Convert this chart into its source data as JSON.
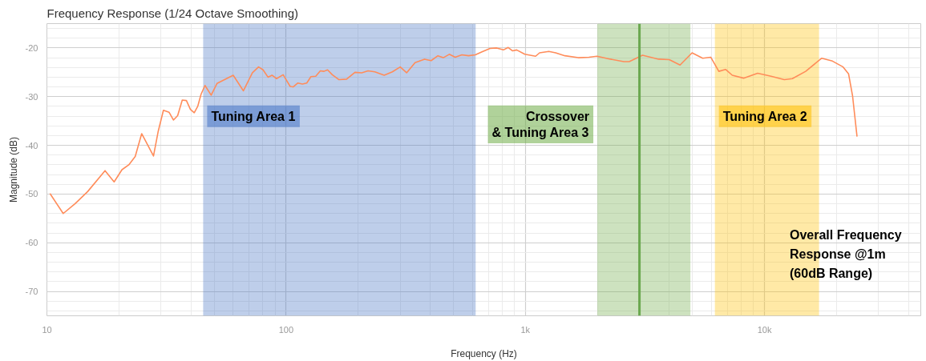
{
  "chart_data": {
    "type": "line",
    "title": "Frequency Response (1/24 Octave Smoothing)",
    "xlabel": "Frequency (Hz)",
    "ylabel": "Magnitude (dB)",
    "log": "x",
    "xlim": [
      10,
      45000
    ],
    "xticks": [
      10,
      100,
      {
        "value": 1000,
        "label": "1k"
      },
      {
        "value": 10000,
        "label": "10k"
      }
    ],
    "ylim": [
      -75,
      -15
    ],
    "yticks": [
      -70,
      -60,
      -50,
      -40,
      -30,
      -20
    ],
    "grid": true,
    "marker": "none",
    "line_style": "solid",
    "series": [
      {
        "color": "#ff8c5a",
        "x": [
          10.3,
          11.7,
          13.1,
          14.8,
          17.5,
          19.1,
          20.6,
          22.0,
          23.4,
          24.9,
          27.9,
          29.2,
          30.7,
          32.4,
          33.8,
          35.2,
          36.8,
          38.3,
          39.8,
          41.3,
          42.7,
          44.1,
          45.8,
          48.6,
          51.4,
          60.1,
          66.3,
          72.3,
          76.7,
          80.1,
          84.0,
          87.3,
          91.2,
          97.2,
          104,
          107,
          112,
          117,
          122,
          127,
          133,
          139,
          144,
          149,
          156,
          166,
          179,
          194,
          207,
          220,
          235,
          257,
          278,
          300,
          319,
          346,
          379,
          404,
          431,
          454,
          481,
          509,
          543,
          579,
          618,
          659,
          712,
          759,
          810,
          848,
          885,
          920,
          995,
          1104,
          1147,
          1254,
          1339,
          1464,
          1665,
          1845,
          1994,
          2270,
          2582,
          2718,
          3090,
          3607,
          3999,
          4434,
          4978,
          5515,
          5958,
          6440,
          6870,
          7330,
          8170,
          9360,
          10650,
          12100,
          13070,
          14860,
          17340,
          19230,
          21300,
          22450,
          23330,
          24360
        ],
        "values": [
          -49.9,
          -54.0,
          -52.0,
          -49.5,
          -45.2,
          -47.5,
          -45.0,
          -44.0,
          -42.3,
          -37.6,
          -42.2,
          -37.1,
          -32.8,
          -33.2,
          -34.8,
          -33.9,
          -30.7,
          -30.8,
          -32.6,
          -33.3,
          -32.0,
          -29.5,
          -27.7,
          -29.7,
          -27.3,
          -25.6,
          -28.8,
          -25.1,
          -23.9,
          -24.5,
          -26.0,
          -25.6,
          -26.3,
          -25.5,
          -27.9,
          -28.0,
          -27.2,
          -27.4,
          -27.2,
          -25.9,
          -25.8,
          -24.7,
          -24.8,
          -24.5,
          -25.5,
          -26.5,
          -26.4,
          -25.0,
          -25.1,
          -24.7,
          -24.9,
          -25.6,
          -24.9,
          -23.9,
          -25.1,
          -23.0,
          -22.3,
          -22.6,
          -21.6,
          -22.0,
          -21.3,
          -21.9,
          -21.4,
          -21.6,
          -21.4,
          -20.8,
          -20.1,
          -20.0,
          -20.4,
          -19.9,
          -20.6,
          -20.4,
          -21.3,
          -21.7,
          -21.0,
          -20.7,
          -21.0,
          -21.6,
          -22.0,
          -21.9,
          -21.7,
          -22.3,
          -22.8,
          -22.8,
          -21.5,
          -22.3,
          -22.4,
          -23.5,
          -21.0,
          -22.1,
          -21.9,
          -24.8,
          -24.4,
          -25.6,
          -26.2,
          -25.2,
          -25.8,
          -26.5,
          -26.3,
          -24.8,
          -22.1,
          -22.7,
          -23.9,
          -25.3,
          -29.8,
          -38.2
        ]
      }
    ],
    "ref_lines": [
      {
        "axis": "x",
        "value": 3000,
        "color": "#6aa84f"
      }
    ],
    "bands": [
      {
        "axis": "x",
        "from": 45,
        "to": 620,
        "label": "Tuning Area 1",
        "color": "#4472c4"
      },
      {
        "axis": "x",
        "from": 2000,
        "to": 4900,
        "label": "Crossover\n& Tuning Area 3",
        "color": "#70ad47"
      },
      {
        "axis": "x",
        "from": 6200,
        "to": 16900,
        "label": "Tuning Area 2",
        "color": "#ffc000"
      }
    ],
    "annotations": [
      "Overall Frequency\nResponse @1m\n(60dB Range)"
    ]
  }
}
